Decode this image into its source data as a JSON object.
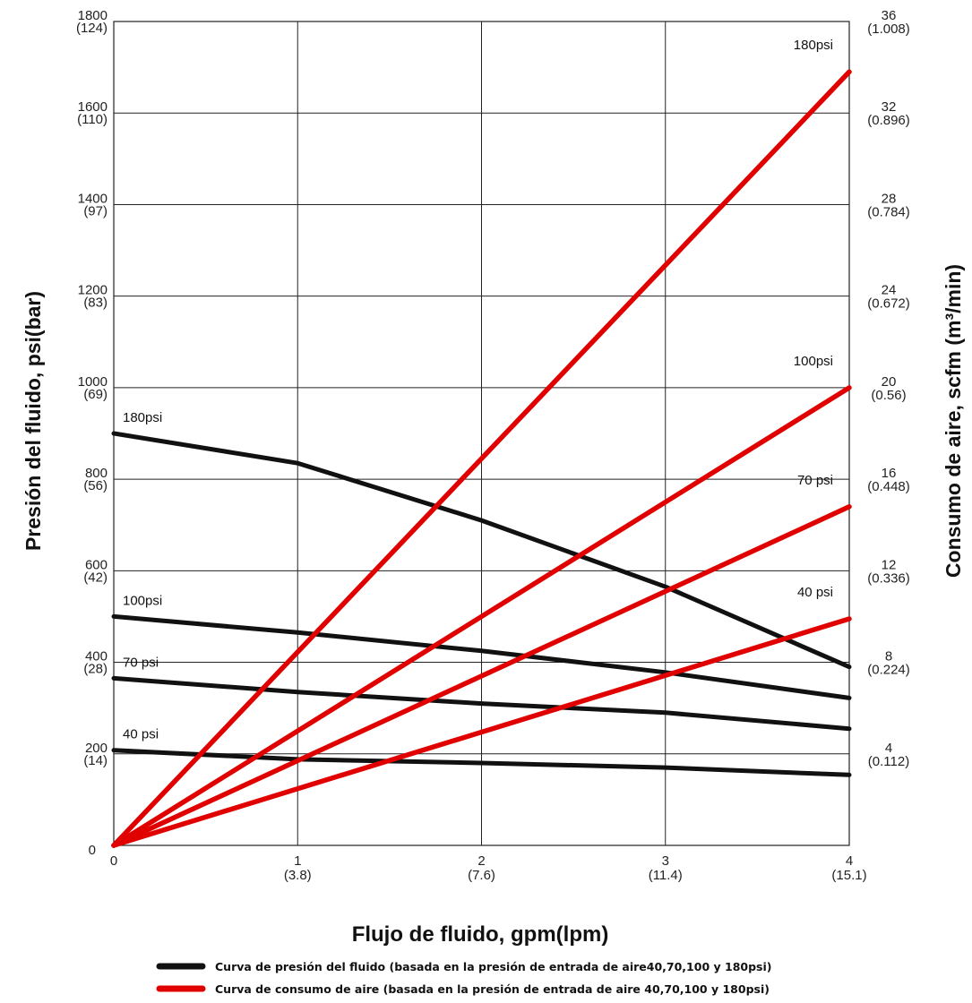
{
  "chart_data": {
    "type": "line",
    "xlabel": "Flujo de fluido,  gpm(lpm)",
    "ylabel_left": "Presión del fluido, psi(bar)",
    "ylabel_right": "Consumo de aire,   scfm (m³/min)",
    "xlim": [
      0,
      4
    ],
    "ylim_left": [
      0,
      1800
    ],
    "ylim_right": [
      0,
      36
    ],
    "grid": true,
    "x_ticks": [
      {
        "value": 0,
        "label": "0",
        "sublabel": ""
      },
      {
        "value": 1,
        "label": "1",
        "sublabel": "(3.8)"
      },
      {
        "value": 2,
        "label": "2",
        "sublabel": "(7.6)"
      },
      {
        "value": 3,
        "label": "3",
        "sublabel": "(11.4)"
      },
      {
        "value": 4,
        "label": "4",
        "sublabel": "(15.1)"
      }
    ],
    "y_left_ticks": [
      {
        "value": 0,
        "label": "0",
        "sublabel": ""
      },
      {
        "value": 200,
        "label": "200",
        "sublabel": "(14)"
      },
      {
        "value": 400,
        "label": "400",
        "sublabel": "(28)"
      },
      {
        "value": 600,
        "label": "600",
        "sublabel": "(42)"
      },
      {
        "value": 800,
        "label": "800",
        "sublabel": "(56)"
      },
      {
        "value": 1000,
        "label": "1000",
        "sublabel": "(69)"
      },
      {
        "value": 1200,
        "label": "1200",
        "sublabel": "(83)"
      },
      {
        "value": 1400,
        "label": "1400",
        "sublabel": "(97)"
      },
      {
        "value": 1600,
        "label": "1600",
        "sublabel": "(110)"
      },
      {
        "value": 1800,
        "label": "1800",
        "sublabel": "(124)"
      }
    ],
    "y_right_ticks": [
      {
        "value": 4,
        "label": "4",
        "sublabel": "(0.112)"
      },
      {
        "value": 8,
        "label": "8",
        "sublabel": "(0.224)"
      },
      {
        "value": 12,
        "label": "12",
        "sublabel": "(0.336)"
      },
      {
        "value": 16,
        "label": "16",
        "sublabel": "(0.448)"
      },
      {
        "value": 20,
        "label": "20",
        "sublabel": "(0.56)"
      },
      {
        "value": 24,
        "label": "24",
        "sublabel": "(0.672)"
      },
      {
        "value": 28,
        "label": "28",
        "sublabel": "(0.784)"
      },
      {
        "value": 32,
        "label": "32",
        "sublabel": "(0.896)"
      },
      {
        "value": 36,
        "label": "36",
        "sublabel": "(1.008)"
      }
    ],
    "series": [
      {
        "name": "180psi",
        "group": "pressure",
        "axis": "left",
        "color": "#111111",
        "label_at": "start",
        "points": [
          [
            0,
            900
          ],
          [
            1,
            835
          ],
          [
            2,
            710
          ],
          [
            3,
            565
          ],
          [
            4,
            390
          ]
        ]
      },
      {
        "name": "100psi",
        "group": "pressure",
        "axis": "left",
        "color": "#111111",
        "label_at": "start",
        "points": [
          [
            0,
            500
          ],
          [
            1,
            465
          ],
          [
            2,
            425
          ],
          [
            3,
            378
          ],
          [
            4,
            322
          ]
        ]
      },
      {
        "name": "70 psi",
        "group": "pressure",
        "axis": "left",
        "color": "#111111",
        "label_at": "start",
        "points": [
          [
            0,
            365
          ],
          [
            1,
            335
          ],
          [
            2,
            310
          ],
          [
            3,
            290
          ],
          [
            4,
            255
          ]
        ]
      },
      {
        "name": "40 psi",
        "group": "pressure",
        "axis": "left",
        "color": "#111111",
        "label_at": "start",
        "points": [
          [
            0,
            208
          ],
          [
            1,
            188
          ],
          [
            2,
            180
          ],
          [
            3,
            170
          ],
          [
            4,
            154
          ]
        ]
      },
      {
        "name": "180psi",
        "group": "air",
        "axis": "right",
        "color": "#e00000",
        "label_at": "end",
        "points": [
          [
            0,
            0
          ],
          [
            4,
            33.8
          ]
        ]
      },
      {
        "name": "100psi",
        "group": "air",
        "axis": "right",
        "color": "#e00000",
        "label_at": "end",
        "points": [
          [
            0,
            0
          ],
          [
            4,
            20
          ]
        ]
      },
      {
        "name": "70 psi",
        "group": "air",
        "axis": "right",
        "color": "#e00000",
        "label_at": "end",
        "points": [
          [
            0,
            0
          ],
          [
            4,
            14.8
          ]
        ]
      },
      {
        "name": "40 psi",
        "group": "air",
        "axis": "right",
        "color": "#e00000",
        "label_at": "end",
        "points": [
          [
            0,
            0
          ],
          [
            4,
            9.9
          ]
        ]
      }
    ],
    "legend": [
      {
        "color": "#111111",
        "text": "Curva de presión del fluido (basada en la presión de entrada de aire40,70,100 y 180psi)"
      },
      {
        "color": "#e00000",
        "text": "Curva de consumo de aire (basada en la presión de entrada de aire 40,70,100 y 180psi)"
      }
    ],
    "legend_position": "bottom"
  }
}
